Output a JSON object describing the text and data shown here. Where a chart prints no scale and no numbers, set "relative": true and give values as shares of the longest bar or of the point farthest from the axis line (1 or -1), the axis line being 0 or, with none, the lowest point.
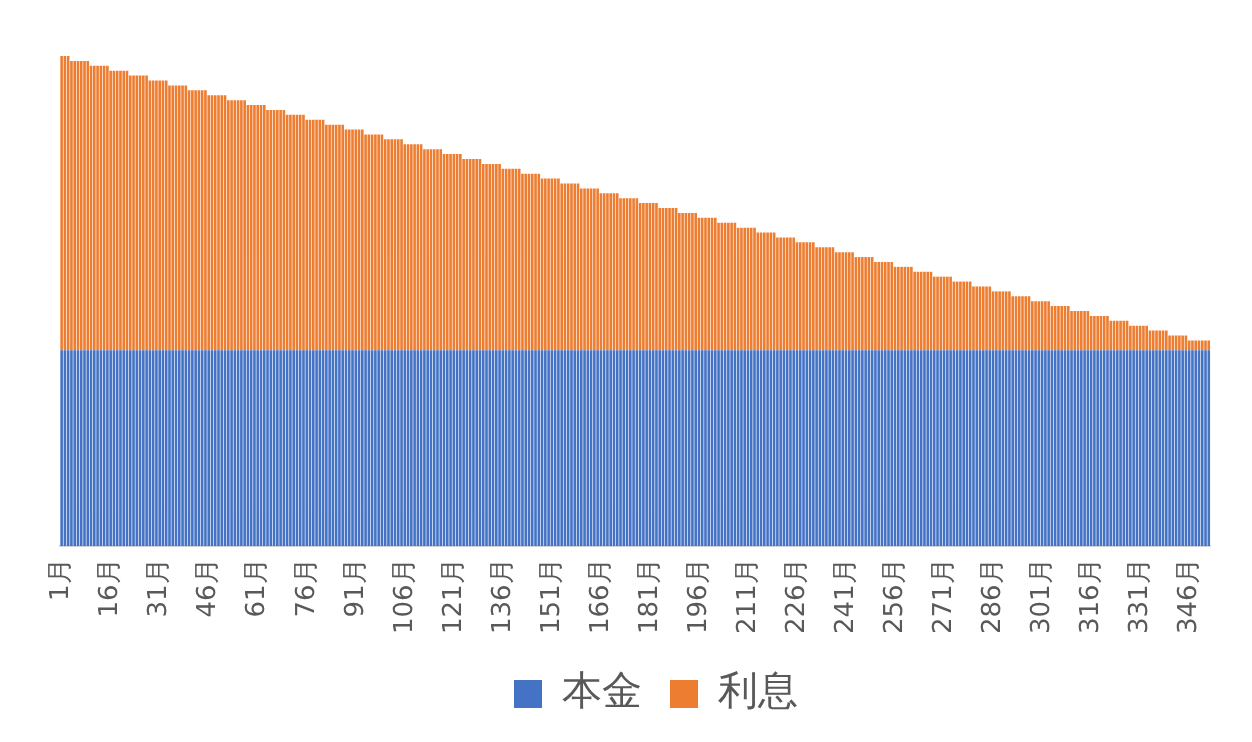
{
  "chart_data": {
    "type": "bar",
    "stacked": true,
    "relative": true,
    "legend": "bottom",
    "categories": [
      "1月",
      null,
      null,
      null,
      null,
      null,
      null,
      null,
      null,
      null,
      null,
      null,
      null,
      null,
      null,
      "16月",
      null,
      null,
      null,
      null,
      null,
      null,
      null,
      null,
      null,
      null,
      null,
      null,
      null,
      null,
      "31月",
      null,
      null,
      null,
      null,
      null,
      null,
      null,
      null,
      null,
      null,
      null,
      null,
      null,
      null,
      "46月",
      null,
      null,
      null,
      null,
      null,
      null,
      null,
      null,
      null,
      null,
      null,
      null,
      null,
      null,
      "61月",
      null,
      null,
      null,
      null,
      null,
      null,
      null,
      null,
      null,
      null,
      null,
      null,
      null,
      null,
      "76月",
      null,
      null,
      null,
      null,
      null,
      null,
      null,
      null,
      null,
      null,
      null,
      null,
      null,
      null,
      "91月",
      null,
      null,
      null,
      null,
      null,
      null,
      null,
      null,
      null,
      null,
      null,
      null,
      null,
      null,
      "106月",
      null,
      null,
      null,
      null,
      null,
      null,
      null,
      null,
      null,
      null,
      null,
      null,
      null,
      null,
      "121月",
      null,
      null,
      null,
      null,
      null,
      null,
      null,
      null,
      null,
      null,
      null,
      null,
      null,
      null,
      "136月",
      null,
      null,
      null,
      null,
      null,
      null,
      null,
      null,
      null,
      null,
      null,
      null,
      null,
      null,
      "151月",
      null,
      null,
      null,
      null,
      null,
      null,
      null,
      null,
      null,
      null,
      null,
      null,
      null,
      null,
      "166月",
      null,
      null,
      null,
      null,
      null,
      null,
      null,
      null,
      null,
      null,
      null,
      null,
      null,
      null,
      "181月",
      null,
      null,
      null,
      null,
      null,
      null,
      null,
      null,
      null,
      null,
      null,
      null,
      null,
      null,
      "196月",
      null,
      null,
      null,
      null,
      null,
      null,
      null,
      null,
      null,
      null,
      null,
      null,
      null,
      null,
      "211月",
      null,
      null,
      null,
      null,
      null,
      null,
      null,
      null,
      null,
      null,
      null,
      null,
      null,
      null,
      "226月",
      null,
      null,
      null,
      null,
      null,
      null,
      null,
      null,
      null,
      null,
      null,
      null,
      null,
      null,
      "241月",
      null,
      null,
      null,
      null,
      null,
      null,
      null,
      null,
      null,
      null,
      null,
      null,
      null,
      null,
      "256月",
      null,
      null,
      null,
      null,
      null,
      null,
      null,
      null,
      null,
      null,
      null,
      null,
      null,
      null,
      "271月",
      null,
      null,
      null,
      null,
      null,
      null,
      null,
      null,
      null,
      null,
      null,
      null,
      null,
      null,
      "286月",
      null,
      null,
      null,
      null,
      null,
      null,
      null,
      null,
      null,
      null,
      null,
      null,
      null,
      null,
      "301月",
      null,
      null,
      null,
      null,
      null,
      null,
      null,
      null,
      null,
      null,
      null,
      null,
      null,
      null,
      "316月",
      null,
      null,
      null,
      null,
      null,
      null,
      null,
      null,
      null,
      null,
      null,
      null,
      null,
      null,
      "331月",
      null,
      null,
      null,
      null,
      null,
      null,
      null,
      null,
      null,
      null,
      null,
      null,
      null,
      null,
      "346月",
      null,
      null,
      null,
      null,
      null,
      null
    ],
    "series": [
      {
        "name": "本金",
        "color": "#4472c4",
        "values": [
          0.4,
          0.4,
          0.4,
          0.4,
          0.4,
          0.4,
          0.4,
          0.4,
          0.4,
          0.4,
          0.4,
          0.4,
          0.4,
          0.4,
          0.4,
          0.4,
          0.4,
          0.4,
          0.4,
          0.4,
          0.4,
          0.4,
          0.4,
          0.4,
          0.4,
          0.4,
          0.4,
          0.4,
          0.4,
          0.4,
          0.4,
          0.4,
          0.4,
          0.4,
          0.4,
          0.4,
          0.4,
          0.4,
          0.4,
          0.4,
          0.4,
          0.4,
          0.4,
          0.4,
          0.4,
          0.4,
          0.4,
          0.4,
          0.4,
          0.4,
          0.4,
          0.4,
          0.4,
          0.4,
          0.4,
          0.4,
          0.4,
          0.4,
          0.4,
          0.4,
          0.4,
          0.4,
          0.4,
          0.4,
          0.4,
          0.4,
          0.4,
          0.4,
          0.4,
          0.4,
          0.4,
          0.4,
          0.4,
          0.4,
          0.4,
          0.4,
          0.4,
          0.4,
          0.4,
          0.4,
          0.4,
          0.4,
          0.4,
          0.4,
          0.4,
          0.4,
          0.4,
          0.4,
          0.4,
          0.4,
          0.4,
          0.4,
          0.4,
          0.4,
          0.4,
          0.4,
          0.4,
          0.4,
          0.4,
          0.4,
          0.4,
          0.4,
          0.4,
          0.4,
          0.4,
          0.4,
          0.4,
          0.4,
          0.4,
          0.4,
          0.4,
          0.4,
          0.4,
          0.4,
          0.4,
          0.4,
          0.4,
          0.4,
          0.4,
          0.4,
          0.4,
          0.4,
          0.4,
          0.4,
          0.4,
          0.4,
          0.4,
          0.4,
          0.4,
          0.4,
          0.4,
          0.4,
          0.4,
          0.4,
          0.4,
          0.4,
          0.4,
          0.4,
          0.4,
          0.4,
          0.4,
          0.4,
          0.4,
          0.4,
          0.4,
          0.4,
          0.4,
          0.4,
          0.4,
          0.4,
          0.4,
          0.4,
          0.4,
          0.4,
          0.4,
          0.4,
          0.4,
          0.4,
          0.4,
          0.4,
          0.4,
          0.4,
          0.4,
          0.4,
          0.4,
          0.4,
          0.4,
          0.4,
          0.4,
          0.4,
          0.4,
          0.4,
          0.4,
          0.4,
          0.4,
          0.4,
          0.4,
          0.4,
          0.4,
          0.4,
          0.4,
          0.4,
          0.4,
          0.4,
          0.4,
          0.4,
          0.4,
          0.4,
          0.4,
          0.4,
          0.4,
          0.4,
          0.4,
          0.4,
          0.4,
          0.4,
          0.4,
          0.4,
          0.4,
          0.4,
          0.4,
          0.4,
          0.4,
          0.4,
          0.4,
          0.4,
          0.4,
          0.4,
          0.4,
          0.4,
          0.4,
          0.4,
          0.4,
          0.4,
          0.4,
          0.4,
          0.4,
          0.4,
          0.4,
          0.4,
          0.4,
          0.4,
          0.4,
          0.4,
          0.4,
          0.4,
          0.4,
          0.4,
          0.4,
          0.4,
          0.4,
          0.4,
          0.4,
          0.4,
          0.4,
          0.4,
          0.4,
          0.4,
          0.4,
          0.4,
          0.4,
          0.4,
          0.4,
          0.4,
          0.4,
          0.4,
          0.4,
          0.4,
          0.4,
          0.4,
          0.4,
          0.4,
          0.4,
          0.4,
          0.4,
          0.4,
          0.4,
          0.4,
          0.4,
          0.4,
          0.4,
          0.4,
          0.4,
          0.4,
          0.4,
          0.4,
          0.4,
          0.4,
          0.4,
          0.4,
          0.4,
          0.4,
          0.4,
          0.4,
          0.4,
          0.4,
          0.4,
          0.4,
          0.4,
          0.4,
          0.4,
          0.4,
          0.4,
          0.4,
          0.4,
          0.4,
          0.4,
          0.4,
          0.4,
          0.4,
          0.4,
          0.4,
          0.4,
          0.4,
          0.4,
          0.4,
          0.4,
          0.4,
          0.4,
          0.4,
          0.4,
          0.4,
          0.4,
          0.4,
          0.4,
          0.4,
          0.4,
          0.4,
          0.4,
          0.4,
          0.4,
          0.4,
          0.4,
          0.4,
          0.4,
          0.4,
          0.4,
          0.4,
          0.4,
          0.4,
          0.4,
          0.4,
          0.4,
          0.4,
          0.4,
          0.4,
          0.4,
          0.4,
          0.4,
          0.4,
          0.4,
          0.4,
          0.4,
          0.4,
          0.4,
          0.4,
          0.4,
          0.4,
          0.4,
          0.4,
          0.4,
          0.4,
          0.4,
          0.4,
          0.4,
          0.4,
          0.4,
          0.4,
          0.4,
          0.4,
          0.4,
          0.4
        ]
      },
      {
        "name": "利息",
        "color": "#ed7d31",
        "values": [
          0.6,
          0.6,
          0.6,
          0.59,
          0.59,
          0.59,
          0.59,
          0.59,
          0.59,
          0.58,
          0.58,
          0.58,
          0.58,
          0.58,
          0.58,
          0.57,
          0.57,
          0.57,
          0.57,
          0.57,
          0.57,
          0.56,
          0.56,
          0.56,
          0.56,
          0.56,
          0.56,
          0.55,
          0.55,
          0.55,
          0.55,
          0.55,
          0.55,
          0.54,
          0.54,
          0.54,
          0.54,
          0.54,
          0.54,
          0.53,
          0.53,
          0.53,
          0.53,
          0.53,
          0.53,
          0.52,
          0.52,
          0.52,
          0.52,
          0.52,
          0.52,
          0.51,
          0.51,
          0.51,
          0.51,
          0.51,
          0.51,
          0.5,
          0.5,
          0.5,
          0.5,
          0.5,
          0.5,
          0.49,
          0.49,
          0.49,
          0.49,
          0.49,
          0.49,
          0.48,
          0.48,
          0.48,
          0.48,
          0.48,
          0.48,
          0.47,
          0.47,
          0.47,
          0.47,
          0.47,
          0.47,
          0.46,
          0.46,
          0.46,
          0.46,
          0.46,
          0.46,
          0.45,
          0.45,
          0.45,
          0.45,
          0.45,
          0.45,
          0.44,
          0.44,
          0.44,
          0.44,
          0.44,
          0.44,
          0.43,
          0.43,
          0.43,
          0.43,
          0.43,
          0.43,
          0.42,
          0.42,
          0.42,
          0.42,
          0.42,
          0.42,
          0.41,
          0.41,
          0.41,
          0.41,
          0.41,
          0.41,
          0.4,
          0.4,
          0.4,
          0.4,
          0.4,
          0.4,
          0.39,
          0.39,
          0.39,
          0.39,
          0.39,
          0.39,
          0.38,
          0.38,
          0.38,
          0.38,
          0.38,
          0.38,
          0.37,
          0.37,
          0.37,
          0.37,
          0.37,
          0.37,
          0.36,
          0.36,
          0.36,
          0.36,
          0.36,
          0.36,
          0.35,
          0.35,
          0.35,
          0.35,
          0.35,
          0.35,
          0.34,
          0.34,
          0.34,
          0.34,
          0.34,
          0.34,
          0.33,
          0.33,
          0.33,
          0.33,
          0.33,
          0.33,
          0.32,
          0.32,
          0.32,
          0.32,
          0.32,
          0.32,
          0.31,
          0.31,
          0.31,
          0.31,
          0.31,
          0.31,
          0.3,
          0.3,
          0.3,
          0.3,
          0.3,
          0.3,
          0.29,
          0.29,
          0.29,
          0.29,
          0.29,
          0.29,
          0.28,
          0.28,
          0.28,
          0.28,
          0.28,
          0.28,
          0.27,
          0.27,
          0.27,
          0.27,
          0.27,
          0.27,
          0.26,
          0.26,
          0.26,
          0.26,
          0.26,
          0.26,
          0.25,
          0.25,
          0.25,
          0.25,
          0.25,
          0.25,
          0.24,
          0.24,
          0.24,
          0.24,
          0.24,
          0.24,
          0.23,
          0.23,
          0.23,
          0.23,
          0.23,
          0.23,
          0.22,
          0.22,
          0.22,
          0.22,
          0.22,
          0.22,
          0.21,
          0.21,
          0.21,
          0.21,
          0.21,
          0.21,
          0.2,
          0.2,
          0.2,
          0.2,
          0.2,
          0.2,
          0.19,
          0.19,
          0.19,
          0.19,
          0.19,
          0.19,
          0.18,
          0.18,
          0.18,
          0.18,
          0.18,
          0.18,
          0.17,
          0.17,
          0.17,
          0.17,
          0.17,
          0.17,
          0.16,
          0.16,
          0.16,
          0.16,
          0.16,
          0.16,
          0.15,
          0.15,
          0.15,
          0.15,
          0.15,
          0.15,
          0.14,
          0.14,
          0.14,
          0.14,
          0.14,
          0.14,
          0.13,
          0.13,
          0.13,
          0.13,
          0.13,
          0.13,
          0.12,
          0.12,
          0.12,
          0.12,
          0.12,
          0.12,
          0.11,
          0.11,
          0.11,
          0.11,
          0.11,
          0.11,
          0.1,
          0.1,
          0.1,
          0.1,
          0.1,
          0.1,
          0.09,
          0.09,
          0.09,
          0.09,
          0.09,
          0.09,
          0.08,
          0.08,
          0.08,
          0.08,
          0.08,
          0.08,
          0.07,
          0.07,
          0.07,
          0.07,
          0.07,
          0.07,
          0.06,
          0.06,
          0.06,
          0.06,
          0.06,
          0.06,
          0.05,
          0.05,
          0.05,
          0.05,
          0.05,
          0.05,
          0.04,
          0.04,
          0.04,
          0.04,
          0.04,
          0.04,
          0.03,
          0.03,
          0.03,
          0.03,
          0.03,
          0.03,
          0.02,
          0.02,
          0.02,
          0.02,
          0.02,
          0.02,
          0.02
        ]
      }
    ]
  }
}
